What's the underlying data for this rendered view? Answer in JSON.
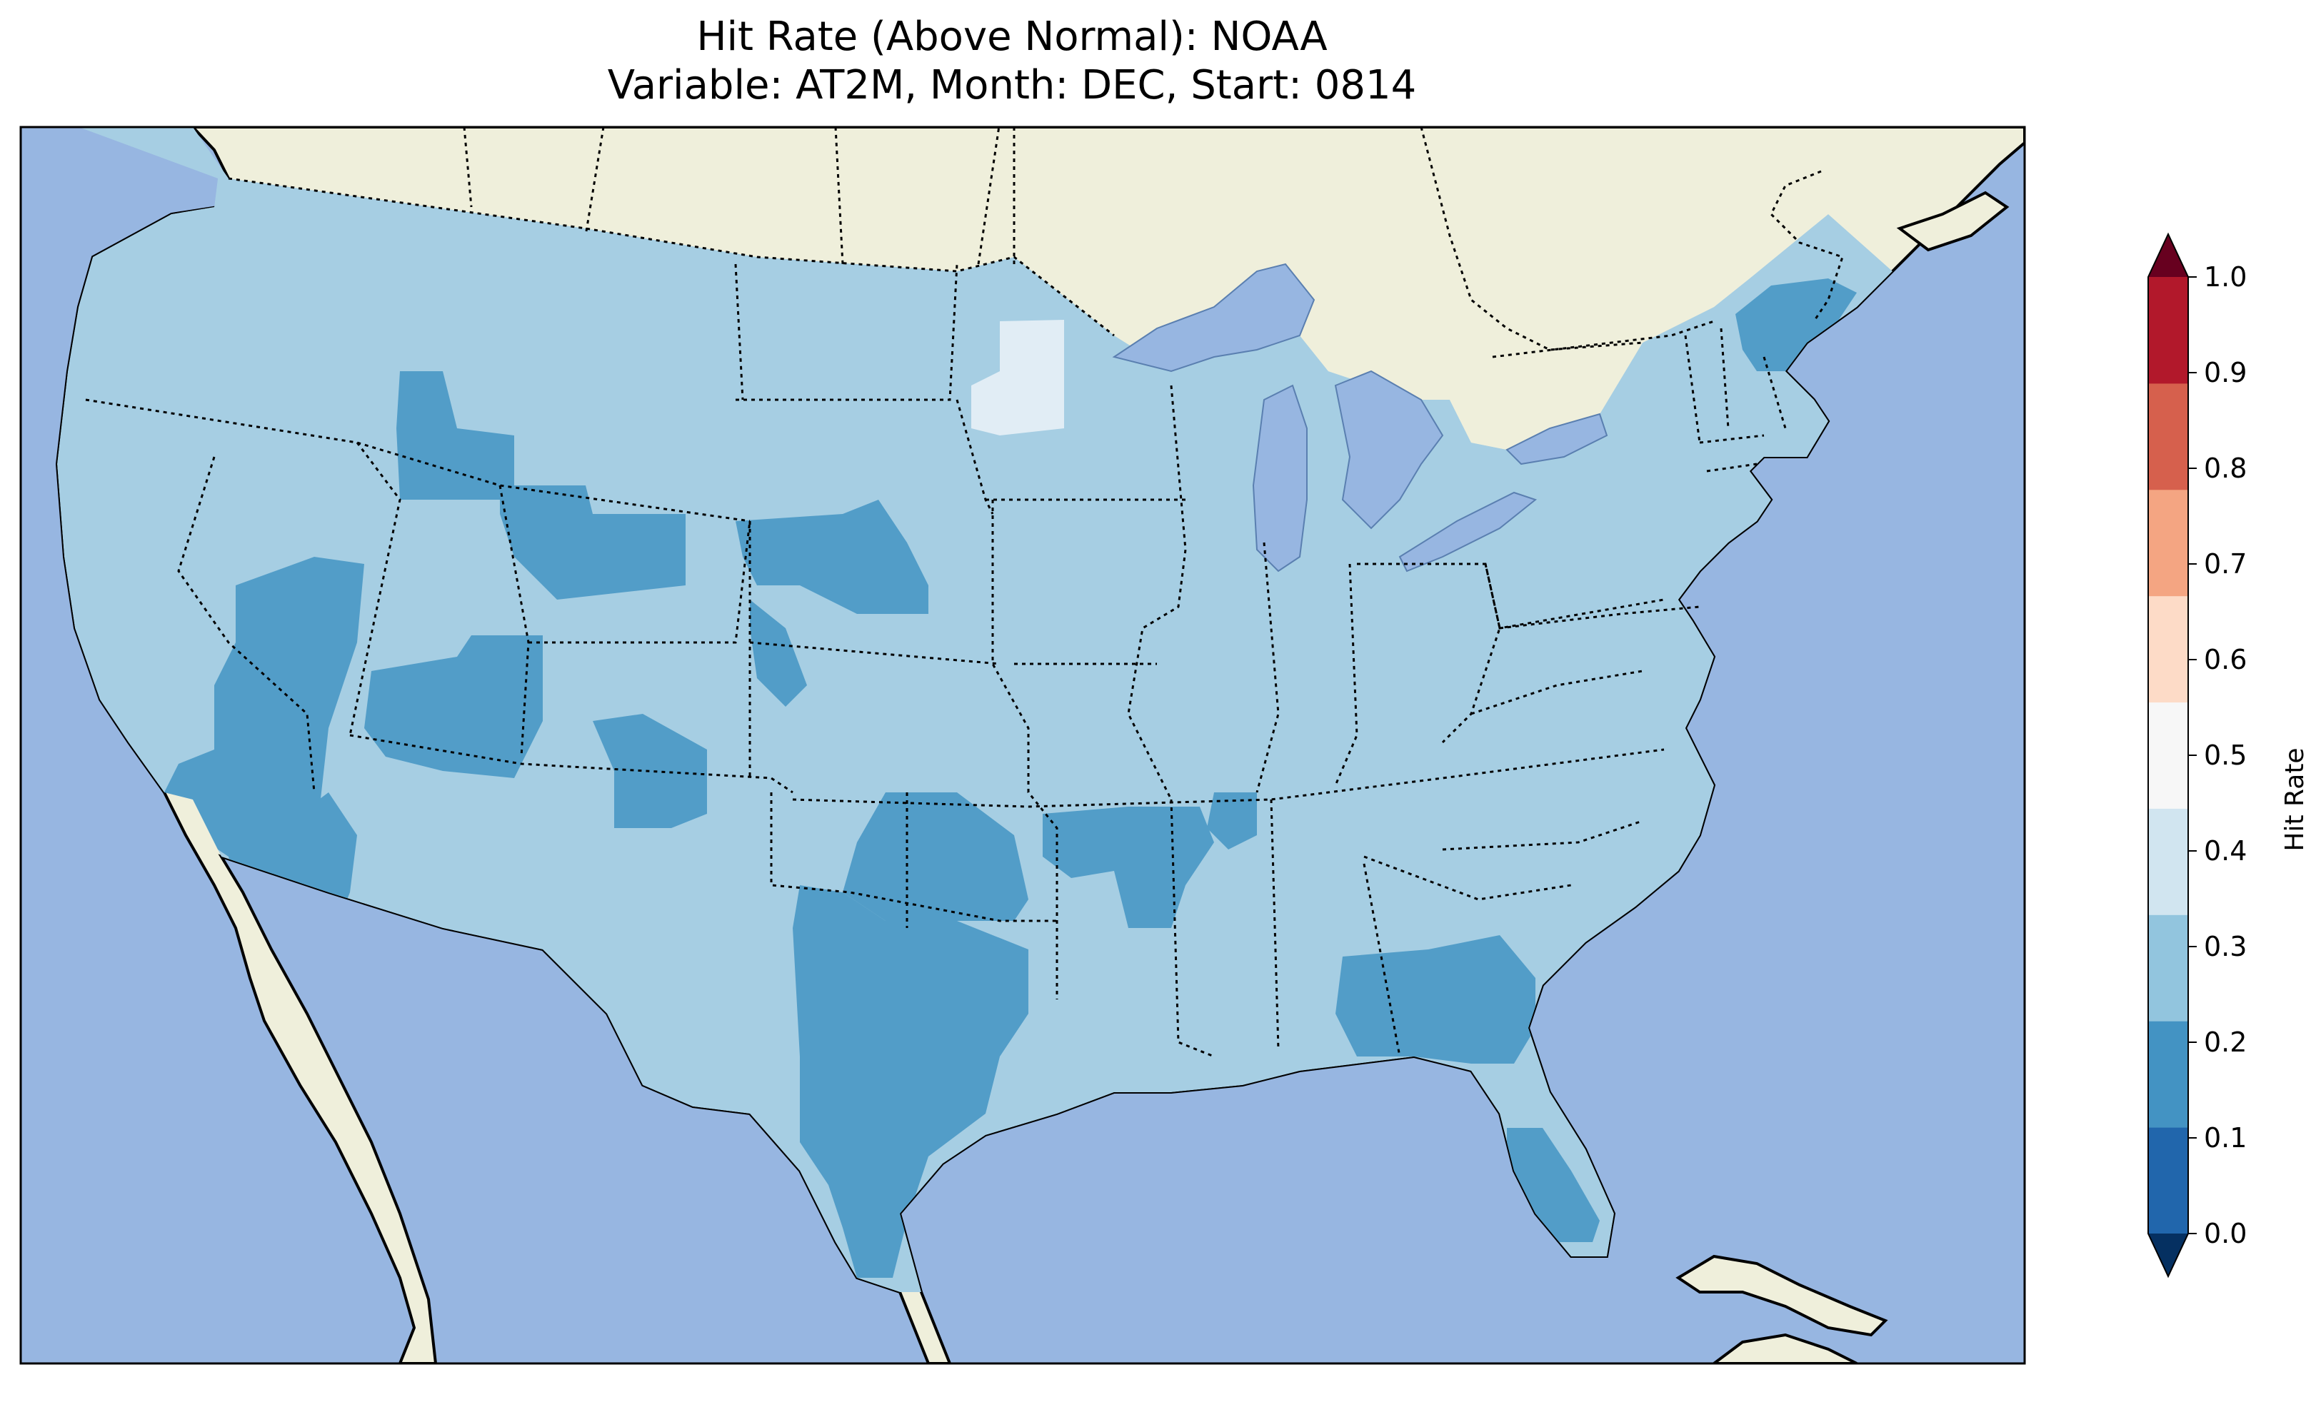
{
  "title": {
    "line1": "Hit Rate (Above Normal): NOAA",
    "line2": "Variable: AT2M, Month: DEC, Start: 0814"
  },
  "map": {
    "region": "Contiguous United States",
    "ocean_color": "#97b6e1",
    "land_color": "#efefdb",
    "lake_color": "#97b6e1"
  },
  "colorbar": {
    "label": "Hit Rate",
    "ticks": [
      "0.0",
      "0.1",
      "0.2",
      "0.3",
      "0.4",
      "0.5",
      "0.6",
      "0.7",
      "0.8",
      "0.9",
      "1.0"
    ],
    "colors": [
      "#053061",
      "#2166ac",
      "#4393c3",
      "#92c5de",
      "#d1e5f0",
      "#f7f7f7",
      "#fddbc7",
      "#f4a582",
      "#d6604d",
      "#b2182b",
      "#67001f"
    ],
    "extend": "both"
  },
  "chart_data": {
    "type": "heatmap",
    "title": "Hit Rate (Above Normal): NOAA\nVariable: AT2M, Month: DEC, Start: 0814",
    "colorbar_label": "Hit Rate",
    "value_range": [
      0.0,
      1.0
    ],
    "bins": [
      0.0,
      0.1,
      0.2,
      0.3,
      0.4,
      0.5,
      0.6,
      0.7,
      0.8,
      0.9,
      1.0
    ],
    "fill_colors": {
      "0.2-0.3": "#529dc8",
      "0.3-0.4": "#a6cee3",
      "0.4-0.5": "#e1edf5"
    },
    "background_value": "0.3-0.4"
  }
}
